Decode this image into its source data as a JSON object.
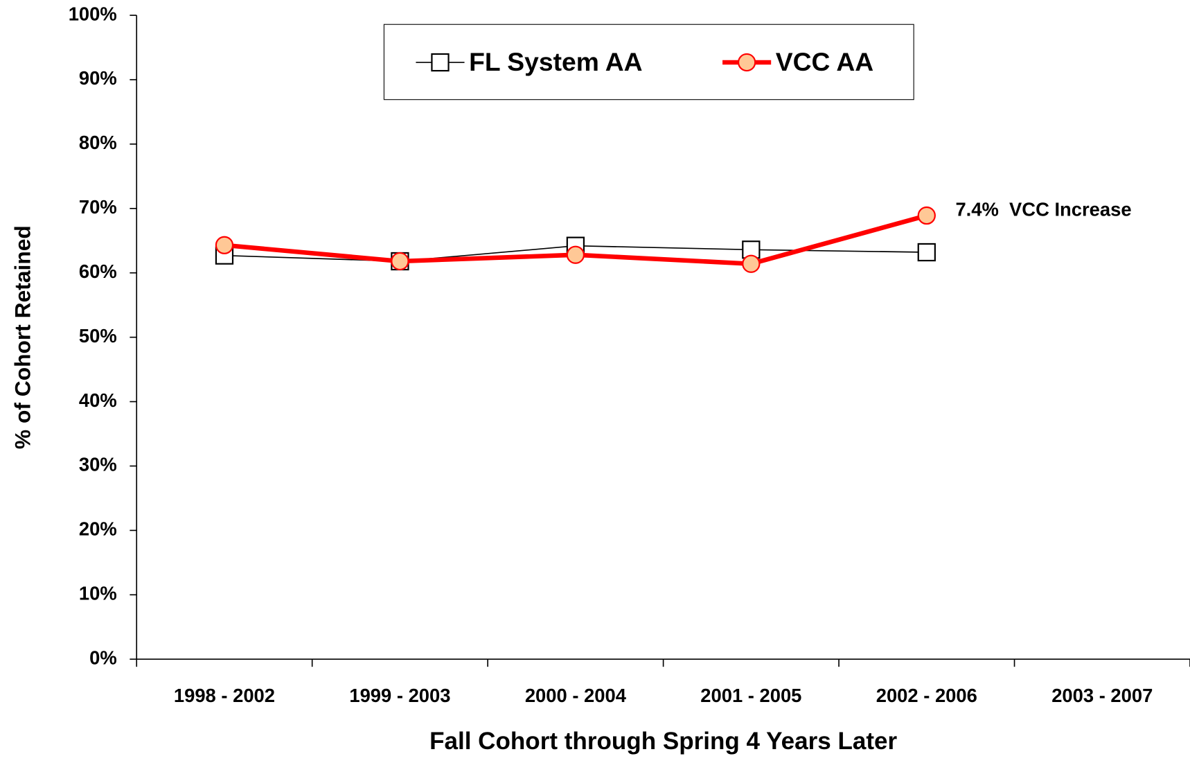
{
  "chart_data": {
    "type": "line",
    "x_label": "Fall Cohort through Spring 4 Years Later",
    "y_label": "% of Cohort Retained",
    "categories": [
      "1998 - 2002",
      "1999 - 2003",
      "2000 - 2004",
      "2001 - 2005",
      "2002 - 2006",
      "2003 - 2007"
    ],
    "series": [
      {
        "name": "FL System AA",
        "color": "#000000",
        "marker": "square",
        "values": [
          62.7,
          61.8,
          64.2,
          63.6,
          63.2,
          null
        ]
      },
      {
        "name": "VCC AA",
        "color": "#ff0000",
        "marker": "circle",
        "marker_fill": "#ffc896",
        "values": [
          64.3,
          61.8,
          62.8,
          61.4,
          68.9,
          null
        ]
      }
    ],
    "annotation": "7.4%  VCC Increase",
    "ylim": [
      0,
      100
    ],
    "yticks": [
      {
        "value": 0,
        "label": "0%"
      },
      {
        "value": 10,
        "label": "10%"
      },
      {
        "value": 20,
        "label": "20%"
      },
      {
        "value": 30,
        "label": "30%"
      },
      {
        "value": 40,
        "label": "40%"
      },
      {
        "value": 50,
        "label": "50%"
      },
      {
        "value": 60,
        "label": "60%"
      },
      {
        "value": 70,
        "label": "70%"
      },
      {
        "value": 80,
        "label": "80%"
      },
      {
        "value": 90,
        "label": "90%"
      },
      {
        "value": 100,
        "label": "100%"
      }
    ],
    "legend": "top"
  }
}
